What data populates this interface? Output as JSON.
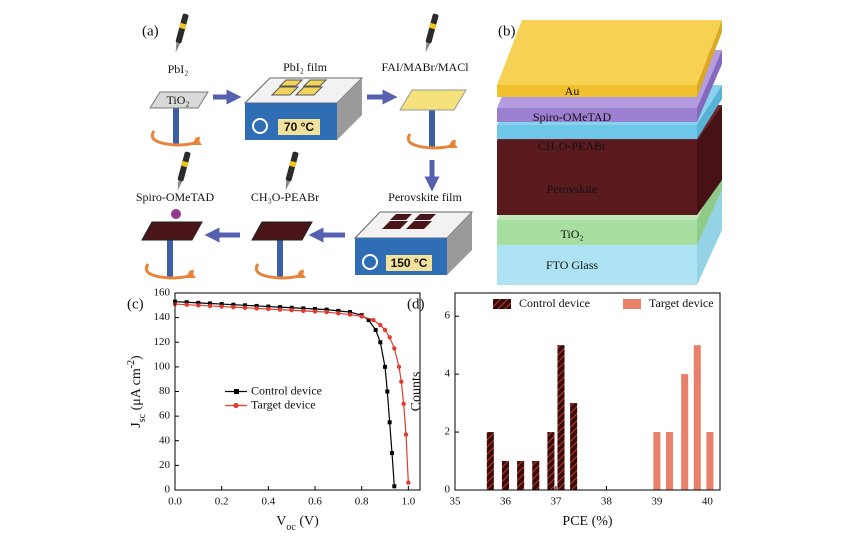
{
  "panel_a": {
    "label": "(a)",
    "pbi2": "PbI₂",
    "tio2": "TiO₂",
    "pbi2_film": "PbI₂ film",
    "temp_1": "70 °C",
    "additives": "FAI/MABr/MACl",
    "perovskite_film": "Perovskite film",
    "temp_2": "150 °C",
    "passivation": "CH₃O-PEABr",
    "htl": "Spiro-OMeTAD"
  },
  "panel_b": {
    "label": "(b)",
    "layers": [
      "Au",
      "Spiro-OMeTAD",
      "CH₃O-PEABr",
      "Perovskite",
      "TiO₂",
      "FTO Glass"
    ]
  },
  "chart_data": [
    {
      "type": "line",
      "label": "(c)",
      "xlabel": [
        {
          "text": "V"
        },
        {
          "text": "oc",
          "shift": "sub"
        },
        {
          "text": " (V)"
        }
      ],
      "ylabel": [
        {
          "text": "J"
        },
        {
          "text": "sc",
          "shift": "sub"
        },
        {
          "text": " (μA cm"
        },
        {
          "text": "-2",
          "shift": "super"
        },
        {
          "text": ")"
        }
      ],
      "xlim": [
        0,
        1.05
      ],
      "xticks": [
        {
          "value": 0,
          "label": "0.0"
        },
        0.2,
        0.4,
        0.6,
        0.8,
        {
          "value": 1,
          "label": "1.0"
        }
      ],
      "ylim": [
        0,
        160
      ],
      "yticks": [
        0,
        20,
        40,
        60,
        80,
        100,
        120,
        140,
        160
      ],
      "legend": "center left",
      "series": [
        {
          "name": "Control device",
          "color": "#000000",
          "marker": "square",
          "x": [
            0,
            0.05,
            0.1,
            0.15,
            0.2,
            0.25,
            0.3,
            0.35,
            0.4,
            0.45,
            0.5,
            0.55,
            0.6,
            0.65,
            0.7,
            0.75,
            0.8,
            0.83,
            0.86,
            0.88,
            0.9,
            0.91,
            0.92,
            0.93,
            0.94
          ],
          "values": [
            153,
            152.5,
            152,
            151.5,
            151,
            150.5,
            150,
            149.5,
            149,
            148.5,
            148,
            147.5,
            147,
            146.5,
            145.5,
            144.5,
            142,
            138,
            130,
            120,
            100,
            80,
            55,
            30,
            3
          ]
        },
        {
          "name": "Target device",
          "color": "#e03c31",
          "marker": "circle",
          "x": [
            0,
            0.05,
            0.1,
            0.15,
            0.2,
            0.25,
            0.3,
            0.35,
            0.4,
            0.45,
            0.5,
            0.55,
            0.6,
            0.65,
            0.7,
            0.75,
            0.8,
            0.85,
            0.88,
            0.9,
            0.92,
            0.94,
            0.96,
            0.97,
            0.98,
            0.99,
            1.0
          ],
          "values": [
            151,
            150.5,
            150,
            149.5,
            149,
            148.5,
            148,
            147.5,
            147,
            146.5,
            146,
            145.5,
            145,
            144.5,
            143.5,
            142.5,
            141,
            138,
            134,
            130,
            124,
            115,
            100,
            88,
            70,
            45,
            6
          ]
        }
      ]
    },
    {
      "type": "bar",
      "label": "(d)",
      "xlabel": [
        {
          "text": "PCE (%)"
        }
      ],
      "ylabel": [
        {
          "text": "Counts"
        }
      ],
      "xlim": [
        35,
        40.25
      ],
      "xticks": [
        35,
        36,
        37,
        38,
        39,
        40
      ],
      "ylim": [
        0,
        6.8
      ],
      "yticks": [
        0,
        2,
        4,
        6
      ],
      "legend": "upper center",
      "series": [
        {
          "name": "Control device",
          "color": "#5a1212",
          "hatch": true,
          "x": [
            35.7,
            36.0,
            36.3,
            36.6,
            36.9,
            37.1,
            37.35
          ],
          "values": [
            2,
            1,
            1,
            1,
            2,
            5,
            3
          ]
        },
        {
          "name": "Target device",
          "color": "#e8806a",
          "hatch": false,
          "x": [
            39.0,
            39.25,
            39.55,
            39.8,
            40.05
          ],
          "values": [
            2,
            2,
            4,
            5,
            2
          ]
        }
      ]
    }
  ]
}
